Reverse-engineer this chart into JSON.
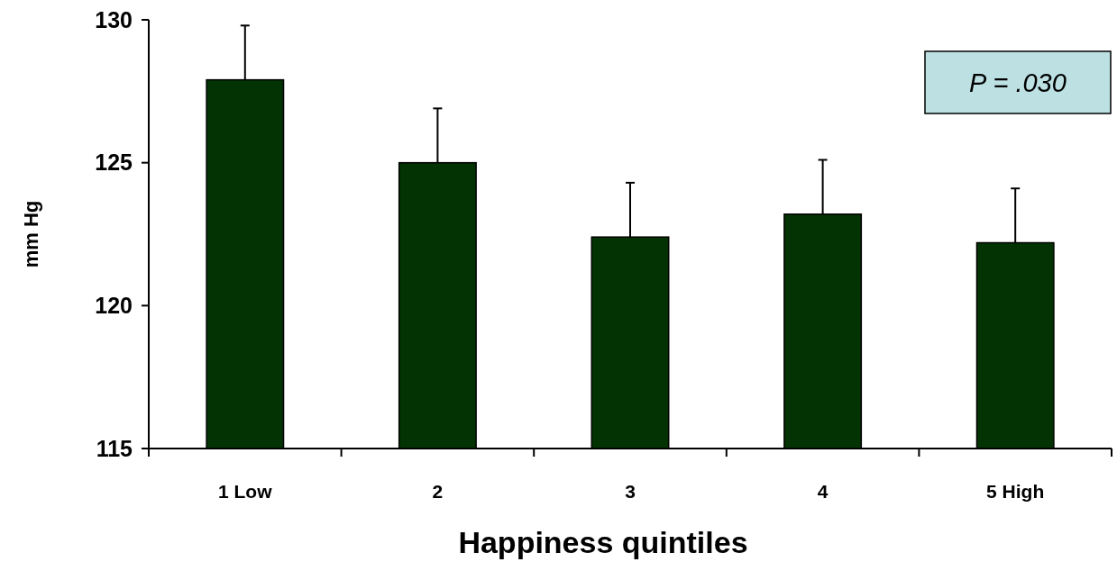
{
  "chart_data": {
    "type": "bar",
    "xlabel": "Happiness quintiles",
    "ylabel": "mm Hg",
    "categories": [
      "1 Low",
      "2",
      "3",
      "4",
      "5 High"
    ],
    "values": [
      127.9,
      125.0,
      122.4,
      123.2,
      122.2
    ],
    "errors": [
      1.9,
      1.9,
      1.9,
      1.9,
      1.9
    ],
    "color": "#033303",
    "ylim": [
      115,
      130
    ],
    "yticks": [
      115,
      120,
      125,
      130
    ],
    "annotations": [
      "P = .030"
    ],
    "grid": false
  }
}
